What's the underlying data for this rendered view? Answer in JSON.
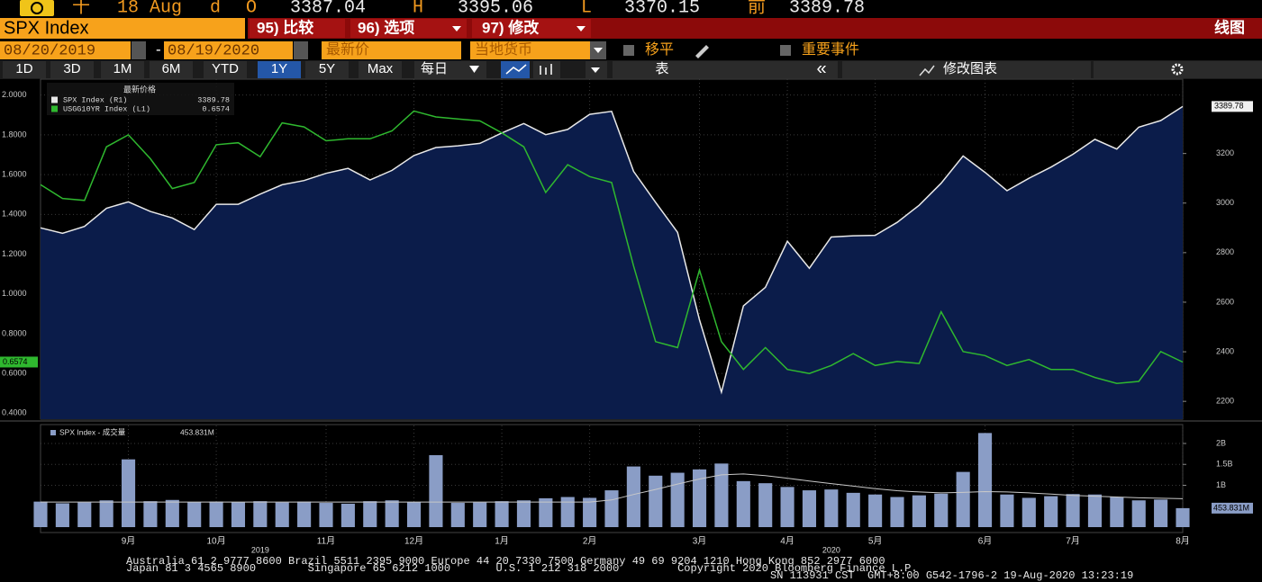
{
  "header": {
    "quote": [
      "十",
      "18 Aug",
      "d",
      "O",
      "3387.04",
      "H",
      "3395.06",
      "L",
      "3370.15",
      "前",
      "3389.78"
    ]
  },
  "toolbar": {
    "security": "SPX Index",
    "menus": [
      "95) 比较",
      "96) 选项",
      "97) 修改"
    ],
    "view": "线图",
    "start_date": "08/20/2019",
    "separator": "-",
    "end_date": "08/19/2020",
    "field": "最新价",
    "currency": "当地货币",
    "options": [
      "移平",
      "重要事件"
    ],
    "periods": [
      "1D",
      "3D",
      "1M",
      "6M",
      "YTD",
      "1Y",
      "5Y",
      "Max"
    ],
    "selected_period": 5,
    "frequency": "每日",
    "table": "表",
    "collapse": "«",
    "edit_chart": "修改图表"
  },
  "chart_data": [
    {
      "type": "line",
      "legend_title": "最新价格",
      "series": [
        {
          "name": "SPX Index (R1)",
          "color": "#e8e8e8",
          "fill": "#0b1c4a",
          "axis": "y2",
          "values": [
            2900,
            2878,
            2906,
            2979,
            3005,
            2966,
            2940,
            2893,
            2995,
            2995,
            3036,
            3074,
            3091,
            3120,
            3140,
            3093,
            3132,
            3192,
            3224,
            3231,
            3241,
            3283,
            3321,
            3276,
            3297,
            3358,
            3370,
            3128,
            3003,
            2882,
            2529,
            2237,
            2585,
            2660,
            2846,
            2737,
            2863,
            2868,
            2870,
            2922,
            2991,
            3080,
            3190,
            3124,
            3050,
            3100,
            3145,
            3197,
            3257,
            3218,
            3306,
            3333,
            3389.78
          ]
        },
        {
          "name": "USGG10YR Index (L1)",
          "color": "#2fb82f",
          "values": [
            1.55,
            1.48,
            1.47,
            1.74,
            1.8,
            1.68,
            1.53,
            1.56,
            1.75,
            1.76,
            1.69,
            1.86,
            1.84,
            1.77,
            1.78,
            1.78,
            1.82,
            1.92,
            1.89,
            1.88,
            1.87,
            1.81,
            1.74,
            1.51,
            1.65,
            1.59,
            1.56,
            1.14,
            0.76,
            0.73,
            1.12,
            0.76,
            0.62,
            0.73,
            0.62,
            0.6,
            0.64,
            0.7,
            0.64,
            0.66,
            0.65,
            0.91,
            0.71,
            0.69,
            0.64,
            0.67,
            0.62,
            0.62,
            0.58,
            0.55,
            0.56,
            0.71,
            0.6574
          ]
        }
      ],
      "ylim": [
        0.37,
        2.08
      ],
      "yticks": [
        {
          "value": 0.4,
          "label": "0.4000"
        },
        {
          "value": 0.6,
          "label": "0.6000"
        },
        {
          "value": 0.8,
          "label": "0.8000"
        },
        {
          "value": 1.0,
          "label": "1.0000"
        },
        {
          "value": 1.2,
          "label": "1.2000"
        },
        {
          "value": 1.4,
          "label": "1.4000"
        },
        {
          "value": 1.6,
          "label": "1.6000"
        },
        {
          "value": 1.8,
          "label": "1.8000"
        },
        {
          "value": 2.0,
          "label": "2.0000"
        }
      ],
      "y2lim": [
        2128,
        3500
      ],
      "y2ticks": [
        2200,
        2400,
        2600,
        2800,
        3000,
        3200
      ],
      "grid": true
    },
    {
      "type": "bar",
      "categories": [
        null,
        null,
        null,
        null,
        "9月",
        null,
        null,
        null,
        "10月",
        null,
        null,
        null,
        null,
        "11月",
        null,
        null,
        null,
        "12月",
        null,
        null,
        null,
        "1月",
        null,
        null,
        null,
        "2月",
        null,
        null,
        null,
        null,
        "3月",
        null,
        null,
        null,
        "4月",
        null,
        null,
        null,
        "5月",
        null,
        null,
        null,
        null,
        "6月",
        null,
        null,
        null,
        "7月",
        null,
        null,
        null,
        null,
        "8月"
      ],
      "x_years": [
        null,
        null,
        null,
        null,
        null,
        null,
        null,
        null,
        null,
        null,
        "2019",
        null,
        null,
        null,
        null,
        null,
        null,
        null,
        null,
        null,
        null,
        null,
        null,
        null,
        null,
        null,
        null,
        null,
        null,
        null,
        null,
        null,
        null,
        null,
        null,
        null,
        "2020",
        null,
        null,
        null,
        null,
        null,
        null,
        null,
        null,
        null,
        null,
        null,
        null,
        null,
        null,
        null,
        null
      ],
      "series": [
        {
          "name": "SPX Index - 成交量",
          "color": "#8a9dc6",
          "values": [
            610000000,
            570000000,
            590000000,
            640000000,
            1620000000,
            620000000,
            650000000,
            600000000,
            610000000,
            600000000,
            620000000,
            590000000,
            610000000,
            580000000,
            560000000,
            620000000,
            640000000,
            600000000,
            1720000000,
            580000000,
            590000000,
            620000000,
            640000000,
            690000000,
            720000000,
            700000000,
            880000000,
            1450000000,
            1230000000,
            1300000000,
            1380000000,
            1520000000,
            1100000000,
            1050000000,
            960000000,
            880000000,
            900000000,
            820000000,
            780000000,
            720000000,
            760000000,
            800000000,
            1320000000,
            2250000000,
            780000000,
            700000000,
            740000000,
            790000000,
            780000000,
            720000000,
            640000000,
            660000000,
            453831000
          ],
          "value_labels": [
            null,
            null,
            null,
            null,
            null,
            null,
            null,
            null,
            null,
            null,
            null,
            null,
            null,
            null,
            null,
            null,
            null,
            null,
            null,
            null,
            null,
            null,
            null,
            null,
            null,
            null,
            null,
            null,
            null,
            null,
            null,
            null,
            null,
            null,
            null,
            null,
            null,
            null,
            null,
            null,
            null,
            null,
            null,
            null,
            null,
            null,
            null,
            null,
            null,
            null,
            null,
            null,
            "453.831M"
          ]
        },
        {
          "type": "line",
          "color": "#c8c8c8",
          "values": [
            600000000,
            600000000,
            600000000,
            600000000,
            600000000,
            600000000,
            600000000,
            600000000,
            600000000,
            600000000,
            600000000,
            600000000,
            600000000,
            600000000,
            600000000,
            600000000,
            600000000,
            600000000,
            600000000,
            600000000,
            600000000,
            600000000,
            600000000,
            600000000,
            600000000,
            600000000,
            650000000,
            780000000,
            900000000,
            1030000000,
            1150000000,
            1250000000,
            1270000000,
            1230000000,
            1170000000,
            1100000000,
            1040000000,
            980000000,
            920000000,
            870000000,
            840000000,
            820000000,
            830000000,
            850000000,
            840000000,
            820000000,
            790000000,
            760000000,
            740000000,
            720000000,
            700000000,
            690000000,
            680000000
          ]
        }
      ],
      "ylim": [
        0,
        2430000000
      ],
      "yticks": [
        {
          "value": 1000000000,
          "label": "1B"
        },
        {
          "value": 1500000000,
          "label": "1.5B"
        },
        {
          "value": 2000000000,
          "label": "2B"
        }
      ],
      "grid": true
    }
  ],
  "footer": {
    "lines": [
      "Australia 61 2 9777 8600 Brazil 5511 2395 9000 Europe 44 20 7330 7500 Germany 49 69 9204 1210 Hong Kong 852 2977 6000",
      "Japan 81 3 4565 8900        Singapore 65 6212 1000       U.S. 1 212 318 2000         Copyright 2020 Bloomberg Finance L.P.",
      "SN 113931 CST  GMT+8:00 G542-1796-2 19-Aug-2020 13:23:19"
    ]
  }
}
